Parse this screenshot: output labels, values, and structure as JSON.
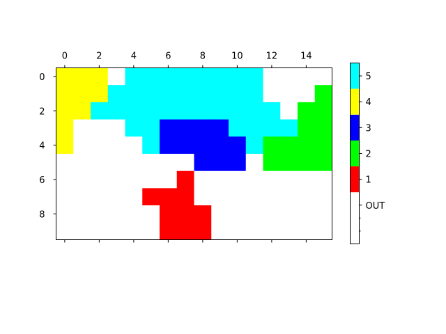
{
  "chart_data": {
    "type": "heatmap",
    "title": "",
    "xlabel": "",
    "ylabel": "",
    "x_tick_labels": [
      "0",
      "2",
      "4",
      "6",
      "8",
      "10",
      "12",
      "14"
    ],
    "y_tick_labels": [
      "0",
      "2",
      "4",
      "6",
      "8"
    ],
    "x_axis_position": "top",
    "grid": false,
    "n_rows": 10,
    "n_cols": 16,
    "grid_values": [
      [
        4,
        4,
        4,
        0,
        5,
        5,
        5,
        5,
        5,
        5,
        5,
        5,
        0,
        0,
        0,
        0
      ],
      [
        4,
        4,
        4,
        5,
        5,
        5,
        5,
        5,
        5,
        5,
        5,
        5,
        0,
        0,
        0,
        2
      ],
      [
        4,
        4,
        5,
        5,
        5,
        5,
        5,
        5,
        5,
        5,
        5,
        5,
        5,
        0,
        2,
        2
      ],
      [
        4,
        0,
        0,
        0,
        5,
        5,
        3,
        3,
        3,
        3,
        5,
        5,
        5,
        5,
        2,
        2
      ],
      [
        4,
        0,
        0,
        0,
        0,
        5,
        3,
        3,
        3,
        3,
        3,
        5,
        2,
        2,
        2,
        2
      ],
      [
        0,
        0,
        0,
        0,
        0,
        0,
        0,
        0,
        3,
        3,
        3,
        0,
        2,
        2,
        2,
        2
      ],
      [
        0,
        0,
        0,
        0,
        0,
        0,
        0,
        1,
        0,
        0,
        0,
        0,
        0,
        0,
        0,
        0
      ],
      [
        0,
        0,
        0,
        0,
        0,
        1,
        1,
        1,
        0,
        0,
        0,
        0,
        0,
        0,
        0,
        0
      ],
      [
        0,
        0,
        0,
        0,
        0,
        0,
        1,
        1,
        1,
        0,
        0,
        0,
        0,
        0,
        0,
        0
      ],
      [
        0,
        0,
        0,
        0,
        0,
        0,
        1,
        1,
        1,
        0,
        0,
        0,
        0,
        0,
        0,
        0
      ]
    ],
    "colorbar": {
      "position": "right",
      "segments": [
        {
          "value": 0,
          "label": "OUT",
          "color": "#ffffff",
          "span": 2
        },
        {
          "value": 1,
          "label": "1",
          "color": "#ff0000",
          "span": 1
        },
        {
          "value": 2,
          "label": "2",
          "color": "#00ff00",
          "span": 1
        },
        {
          "value": 3,
          "label": "3",
          "color": "#0000ff",
          "span": 1
        },
        {
          "value": 4,
          "label": "4",
          "color": "#ffff00",
          "span": 1
        },
        {
          "value": 5,
          "label": "5",
          "color": "#00ffff",
          "span": 1
        }
      ]
    }
  }
}
